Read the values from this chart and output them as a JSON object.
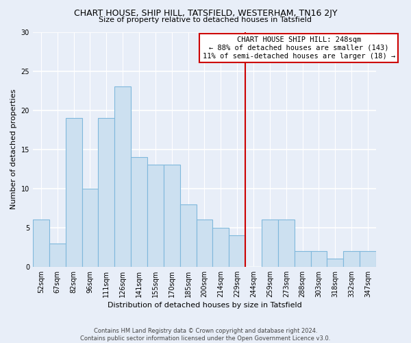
{
  "title": "CHART HOUSE, SHIP HILL, TATSFIELD, WESTERHAM, TN16 2JY",
  "subtitle": "Size of property relative to detached houses in Tatsfield",
  "xlabel": "Distribution of detached houses by size in Tatsfield",
  "ylabel": "Number of detached properties",
  "bar_labels": [
    "52sqm",
    "67sqm",
    "82sqm",
    "96sqm",
    "111sqm",
    "126sqm",
    "141sqm",
    "155sqm",
    "170sqm",
    "185sqm",
    "200sqm",
    "214sqm",
    "229sqm",
    "244sqm",
    "259sqm",
    "273sqm",
    "288sqm",
    "303sqm",
    "318sqm",
    "332sqm",
    "347sqm"
  ],
  "bar_values": [
    6,
    3,
    19,
    10,
    19,
    23,
    14,
    13,
    13,
    8,
    6,
    5,
    4,
    0,
    6,
    6,
    2,
    2,
    1,
    2,
    2
  ],
  "bar_color": "#cce0f0",
  "bar_edge_color": "#7fb8dc",
  "ylim": [
    0,
    30
  ],
  "yticks": [
    0,
    5,
    10,
    15,
    20,
    25,
    30
  ],
  "marker_bar_index": 13,
  "marker_color": "#cc0000",
  "annotation_title": "CHART HOUSE SHIP HILL: 248sqm",
  "annotation_line1": "← 88% of detached houses are smaller (143)",
  "annotation_line2": "11% of semi-detached houses are larger (18) →",
  "annotation_box_color": "#ffffff",
  "annotation_box_edge": "#cc0000",
  "footer1": "Contains HM Land Registry data © Crown copyright and database right 2024.",
  "footer2": "Contains public sector information licensed under the Open Government Licence v3.0.",
  "background_color": "#e8eef8",
  "grid_color": "#ffffff",
  "title_fontsize": 9,
  "subtitle_fontsize": 8,
  "ylabel_fontsize": 8,
  "xlabel_fontsize": 8,
  "tick_fontsize": 7,
  "annotation_fontsize": 7.5,
  "footer_fontsize": 6
}
